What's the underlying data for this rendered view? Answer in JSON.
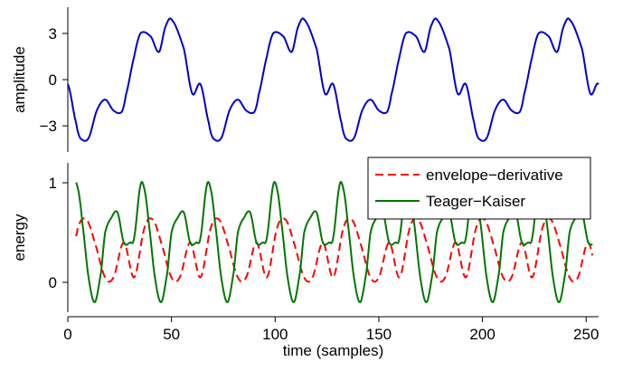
{
  "chart_data": [
    {
      "type": "line",
      "ylabel": "amplitude",
      "xlim": [
        0,
        256
      ],
      "ylim": [
        -4.7,
        4.7
      ],
      "yticks": [
        -3,
        0,
        3
      ],
      "ytick_labels": [
        "−3",
        "0",
        "3"
      ],
      "grid": false,
      "series": [
        {
          "color": "#0000cc",
          "period": 64,
          "x": [
            0,
            4,
            6,
            10,
            14,
            18,
            22,
            26,
            28,
            32,
            35,
            40,
            44,
            47,
            50,
            56,
            60,
            64
          ],
          "values": [
            -0.3,
            -2.8,
            -3.8,
            -3.8,
            -2.0,
            -1.3,
            -2.0,
            -2.1,
            -1.0,
            1.5,
            3.0,
            2.8,
            1.8,
            3.4,
            3.9,
            2.0,
            -0.9,
            -0.3
          ]
        }
      ]
    },
    {
      "type": "line",
      "xlabel": "time (samples)",
      "ylabel": "energy",
      "xlim": [
        0,
        256
      ],
      "ylim": [
        -0.3,
        1.2
      ],
      "xticks": [
        0,
        50,
        100,
        150,
        200,
        250
      ],
      "xtick_labels": [
        "0",
        "50",
        "100",
        "150",
        "200",
        "250"
      ],
      "yticks": [
        0,
        1
      ],
      "ytick_labels": [
        "0",
        "1"
      ],
      "grid": false,
      "legend_position": "top-right",
      "series": [
        {
          "name": "envelope−derivative",
          "color": "#ff0000",
          "style": "dashed",
          "period": 32,
          "x": [
            0,
            5,
            9,
            13,
            18,
            22,
            27,
            32
          ],
          "values": [
            0.05,
            0.55,
            0.63,
            0.4,
            0.05,
            0.05,
            0.4,
            0.05
          ]
        },
        {
          "name": "Teager−Kaiser",
          "color": "#007700",
          "style": "solid",
          "period": 32,
          "x": [
            0,
            3,
            5,
            7,
            10,
            13,
            16,
            18,
            21,
            24,
            27,
            30,
            32
          ],
          "values": [
            0.45,
            0.97,
            0.93,
            0.6,
            0.05,
            -0.2,
            0.1,
            0.5,
            0.65,
            0.7,
            0.4,
            0.4,
            0.45
          ]
        }
      ],
      "x_start": 4,
      "x_end": 253
    }
  ]
}
